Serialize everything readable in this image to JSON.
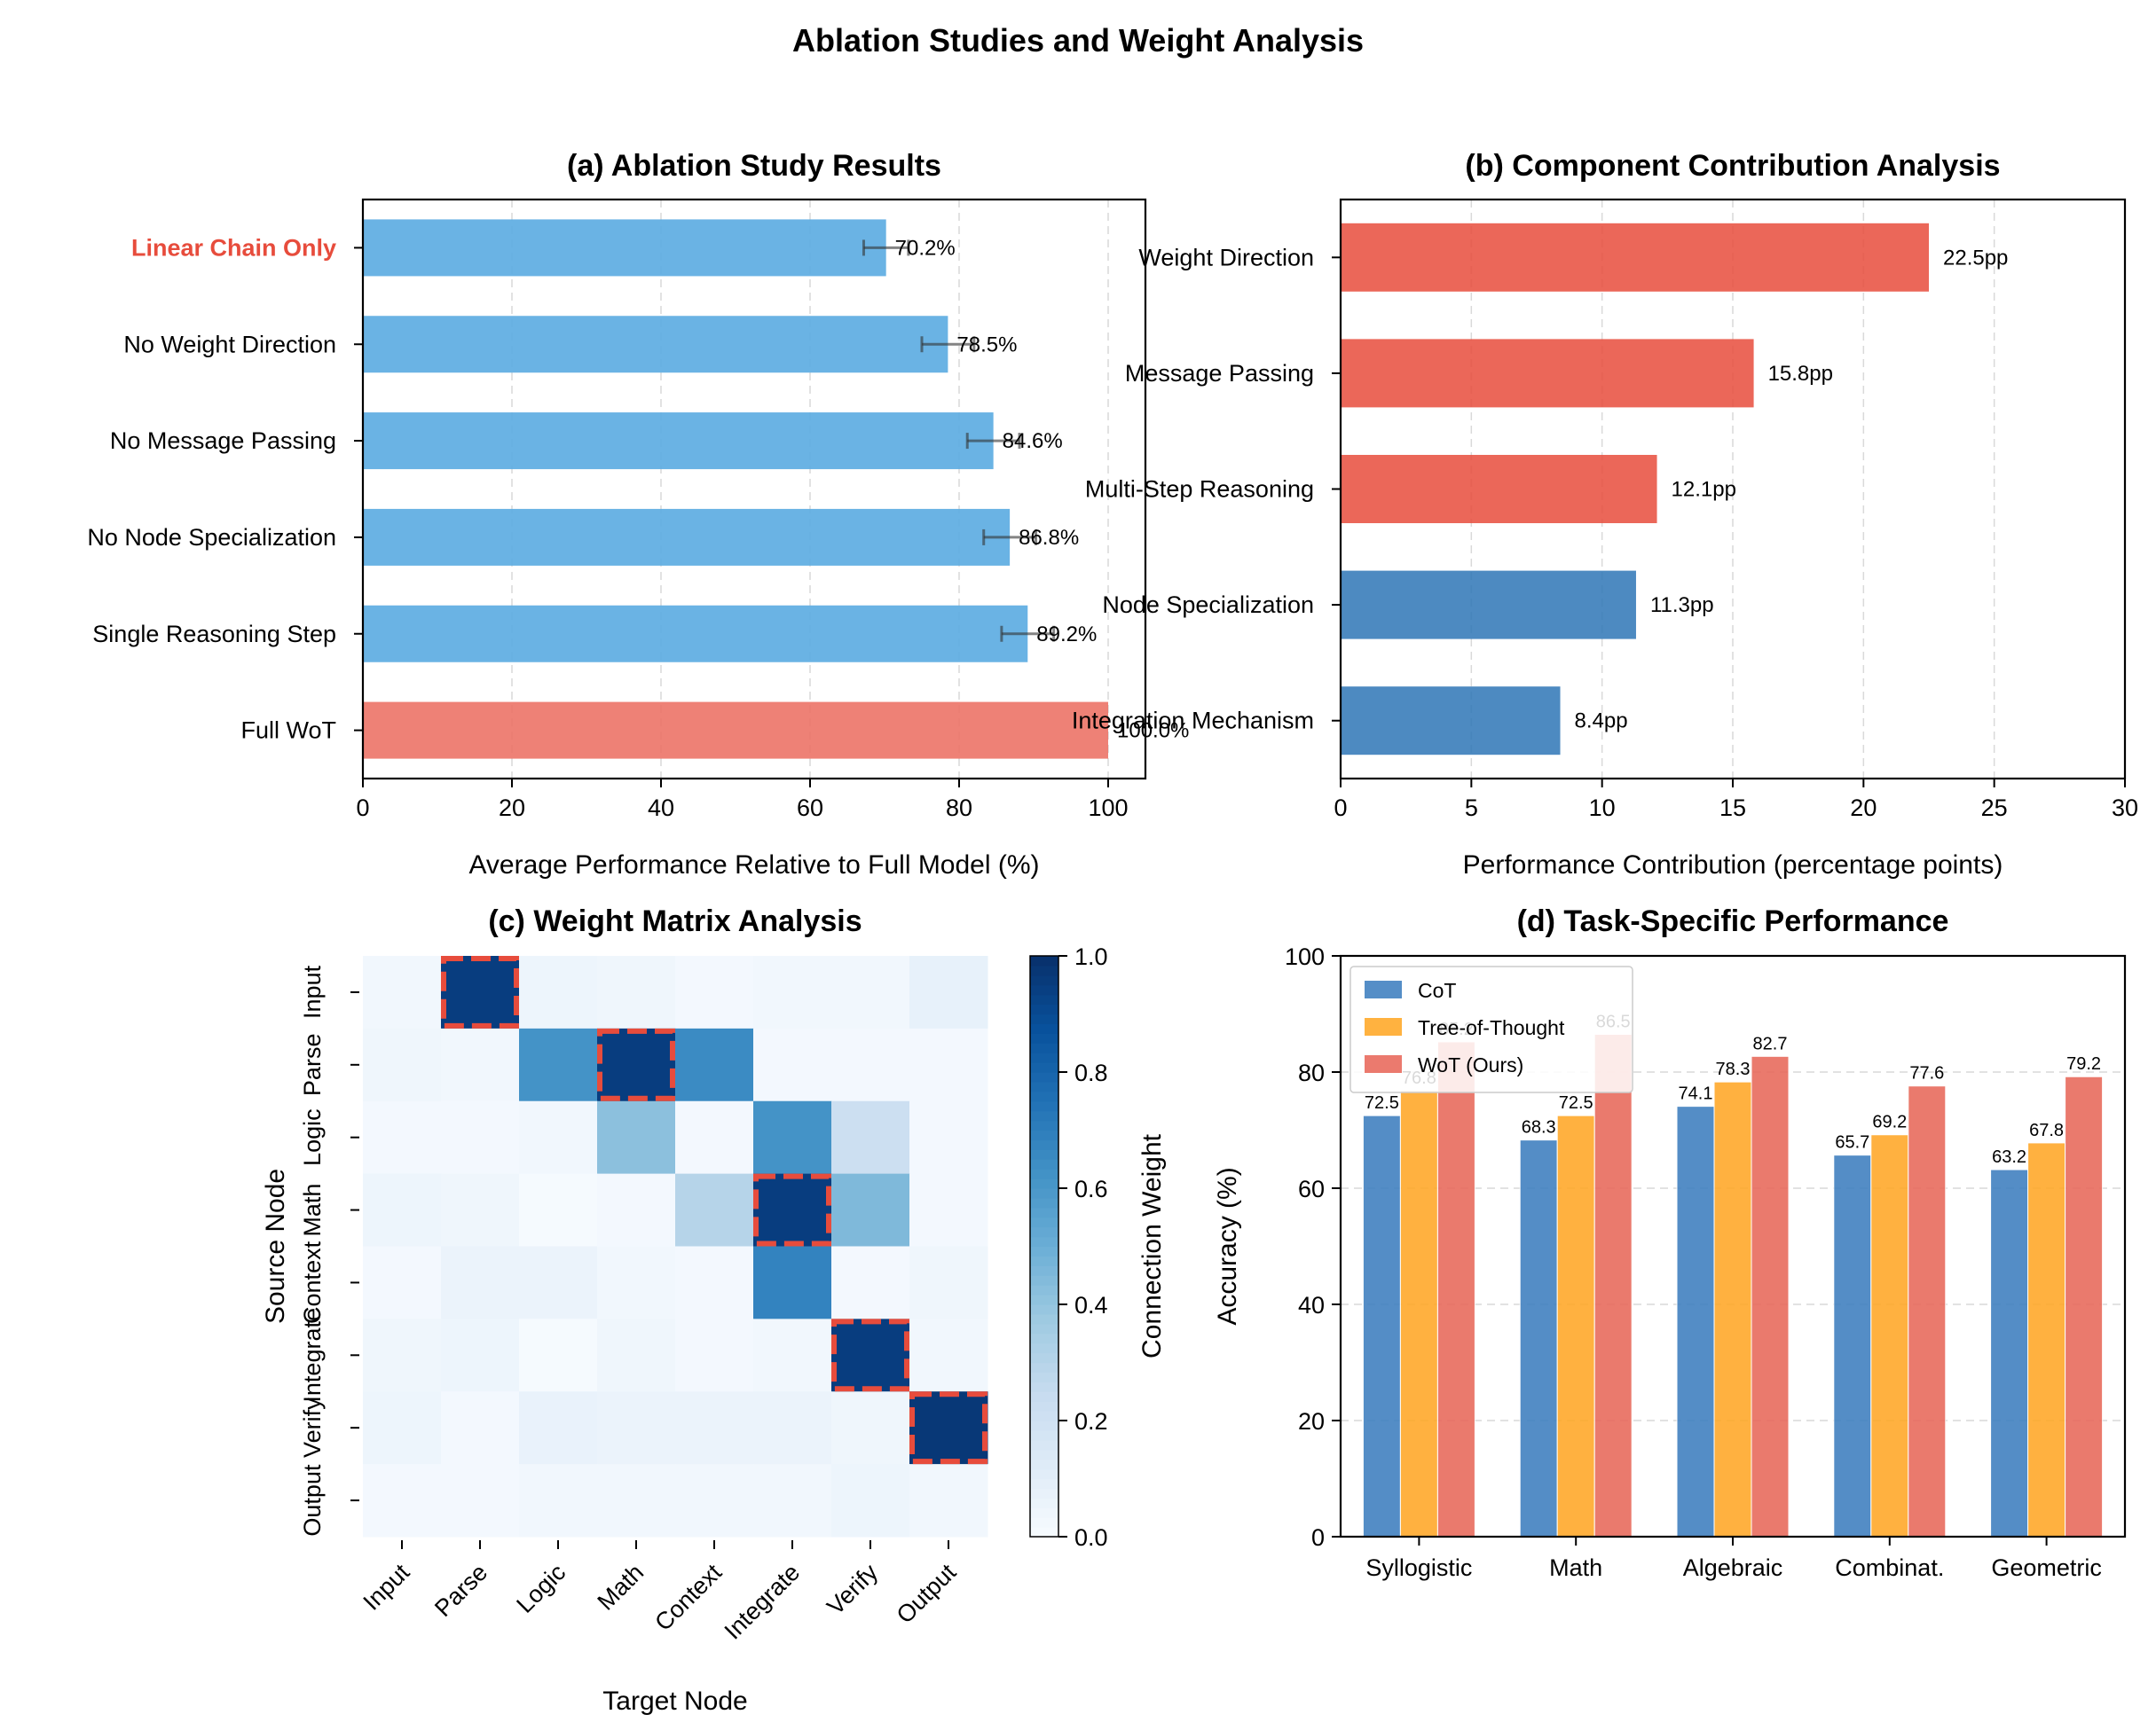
{
  "figure_title": "Ablation Studies and Weight Analysis",
  "colors": {
    "ablation_bar": "#5dade2",
    "full_bar": "#ec7063",
    "contrib_red": "#e74c3c",
    "contrib_blue": "#2e75b6",
    "highlight_text": "#e74c3c",
    "cot": "#3d7ebf",
    "tot": "#ffa726",
    "wot": "#e8685a",
    "heatmap_cmap": "Blues",
    "heatmap_box": "#e74c3c"
  },
  "chart_data": [
    {
      "id": "a",
      "type": "bar",
      "orientation": "horizontal",
      "title": "(a) Ablation Study Results",
      "xlabel": "Average Performance Relative to Full Model (%)",
      "ylabel": "",
      "xlim": [
        0,
        105
      ],
      "xticks": [
        0,
        20,
        40,
        60,
        80,
        100
      ],
      "grid": "x dashed",
      "categories": [
        "Full WoT",
        "Single Reasoning Step",
        "No Node Specialization",
        "No Message Passing",
        "No Weight Direction",
        "Linear Chain Only"
      ],
      "values": [
        100.0,
        89.2,
        86.8,
        84.6,
        78.5,
        70.2
      ],
      "errors": [
        0.0,
        3.5,
        3.5,
        3.5,
        3.5,
        3.0
      ],
      "labels": [
        "100.0%",
        "89.2%",
        "86.8%",
        "84.6%",
        "78.5%",
        "70.2%"
      ],
      "highlight_category": "Linear Chain Only"
    },
    {
      "id": "b",
      "type": "bar",
      "orientation": "horizontal",
      "title": "(b) Component Contribution Analysis",
      "xlabel": "Performance Contribution (percentage points)",
      "ylabel": "",
      "xlim": [
        0,
        30
      ],
      "xticks": [
        0,
        5,
        10,
        15,
        20,
        25,
        30
      ],
      "grid": "x dashed",
      "categories": [
        "Integration Mechanism",
        "Node Specialization",
        "Multi-Step Reasoning",
        "Message Passing",
        "Weight Direction"
      ],
      "values": [
        8.4,
        11.3,
        12.1,
        15.8,
        22.5
      ],
      "labels": [
        "8.4pp",
        "11.3pp",
        "12.1pp",
        "15.8pp",
        "22.5pp"
      ],
      "color_groups": [
        "blue",
        "blue",
        "red",
        "red",
        "red"
      ]
    },
    {
      "id": "c",
      "type": "heatmap",
      "title": "(c) Weight Matrix Analysis",
      "xlabel": "Target Node",
      "ylabel": "Source Node",
      "colorbar_label": "Connection Weight",
      "colorbar_ticks": [
        "0.0",
        "0.2",
        "0.4",
        "0.6",
        "0.8",
        "1.0"
      ],
      "vmin": 0,
      "vmax": 1,
      "x_categories": [
        "Input",
        "Parse",
        "Logic",
        "Math",
        "Context",
        "Integrate",
        "Verify",
        "Output"
      ],
      "y_categories": [
        "Input",
        "Parse",
        "Logic",
        "Math",
        "Context",
        "Integrate",
        "Verify",
        "Output"
      ],
      "matrix": [
        [
          0.03,
          0.95,
          0.05,
          0.04,
          0.02,
          0.03,
          0.03,
          0.08
        ],
        [
          0.04,
          0.03,
          0.62,
          0.95,
          0.65,
          0.02,
          0.02,
          0.02
        ],
        [
          0.02,
          0.02,
          0.03,
          0.42,
          0.02,
          0.62,
          0.22,
          0.02
        ],
        [
          0.05,
          0.04,
          0.01,
          0.02,
          0.3,
          0.95,
          0.45,
          0.02
        ],
        [
          0.02,
          0.06,
          0.06,
          0.03,
          0.02,
          0.68,
          0.02,
          0.04
        ],
        [
          0.04,
          0.05,
          0.01,
          0.04,
          0.02,
          0.03,
          0.95,
          0.03
        ],
        [
          0.05,
          0.02,
          0.07,
          0.06,
          0.06,
          0.06,
          0.04,
          0.97
        ],
        [
          0.02,
          0.02,
          0.03,
          0.03,
          0.03,
          0.03,
          0.05,
          0.03
        ]
      ],
      "highlighted_cells": [
        [
          0,
          1
        ],
        [
          1,
          3
        ],
        [
          3,
          5
        ],
        [
          5,
          6
        ],
        [
          6,
          7
        ]
      ]
    },
    {
      "id": "d",
      "type": "bar",
      "orientation": "vertical",
      "title": "(d) Task-Specific Performance",
      "xlabel": "",
      "ylabel": "Accuracy (%)",
      "ylim": [
        0,
        100
      ],
      "yticks": [
        0,
        20,
        40,
        60,
        80,
        100
      ],
      "grid": "y dashed",
      "legend_position": "top-left",
      "categories": [
        "Syllogistic",
        "Math",
        "Algebraic",
        "Combinat.",
        "Geometric"
      ],
      "series": [
        {
          "name": "CoT",
          "values": [
            72.5,
            68.3,
            74.1,
            65.7,
            63.2
          ],
          "labels": [
            "72.5",
            "68.3",
            "74.1",
            "65.7",
            "63.2"
          ]
        },
        {
          "name": "Tree-of-Thought",
          "values": [
            76.8,
            72.5,
            78.3,
            69.2,
            67.8
          ],
          "labels": [
            "76.8",
            "72.5",
            "78.3",
            "69.2",
            "67.8"
          ]
        },
        {
          "name": "WoT (Ours)",
          "values": [
            85.2,
            86.5,
            82.7,
            77.6,
            79.2
          ],
          "labels": [
            "85.2",
            "86.5",
            "82.7",
            "77.6",
            "79.2"
          ]
        }
      ]
    }
  ]
}
